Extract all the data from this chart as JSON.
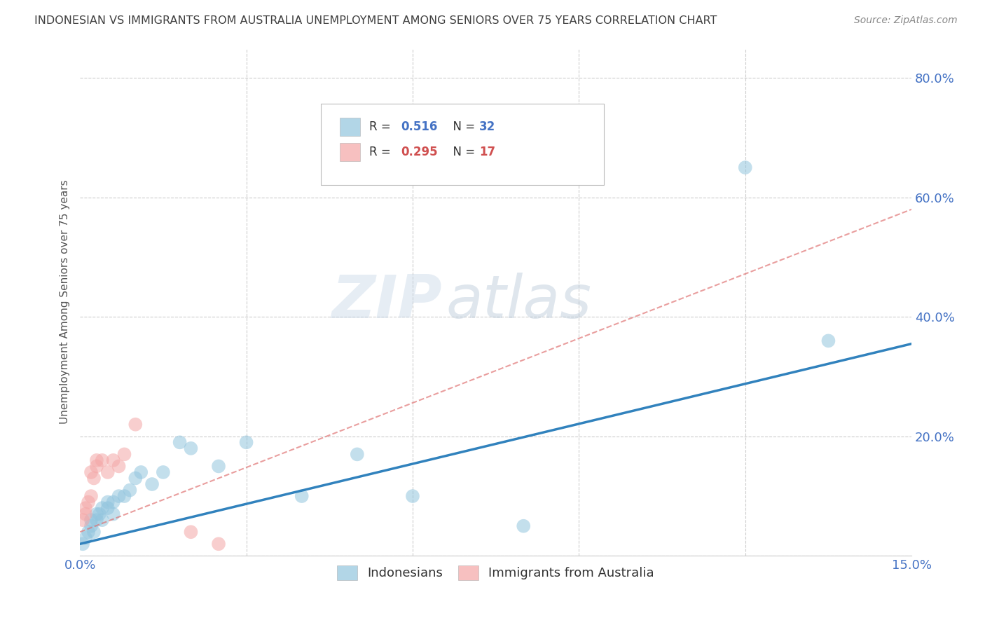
{
  "title": "INDONESIAN VS IMMIGRANTS FROM AUSTRALIA UNEMPLOYMENT AMONG SENIORS OVER 75 YEARS CORRELATION CHART",
  "source": "Source: ZipAtlas.com",
  "ylabel": "Unemployment Among Seniors over 75 years",
  "xlim": [
    0.0,
    0.15
  ],
  "ylim": [
    0.0,
    0.85
  ],
  "indonesian_r": "0.516",
  "indonesian_n": "32",
  "australian_r": "0.295",
  "australian_n": "17",
  "blue_color": "#92c5de",
  "pink_color": "#f4a6a6",
  "blue_line_color": "#3182bd",
  "pink_line_color": "#de6b6b",
  "indonesian_x": [
    0.0005,
    0.001,
    0.0015,
    0.002,
    0.002,
    0.0025,
    0.003,
    0.003,
    0.0035,
    0.004,
    0.004,
    0.005,
    0.005,
    0.006,
    0.006,
    0.007,
    0.008,
    0.009,
    0.01,
    0.011,
    0.013,
    0.015,
    0.018,
    0.02,
    0.025,
    0.03,
    0.04,
    0.05,
    0.06,
    0.08,
    0.12,
    0.135
  ],
  "indonesian_y": [
    0.02,
    0.03,
    0.04,
    0.05,
    0.06,
    0.04,
    0.06,
    0.07,
    0.07,
    0.06,
    0.08,
    0.08,
    0.09,
    0.07,
    0.09,
    0.1,
    0.1,
    0.11,
    0.13,
    0.14,
    0.12,
    0.14,
    0.19,
    0.18,
    0.15,
    0.19,
    0.1,
    0.17,
    0.1,
    0.05,
    0.65,
    0.36
  ],
  "australian_x": [
    0.0005,
    0.001,
    0.001,
    0.0015,
    0.002,
    0.002,
    0.0025,
    0.003,
    0.003,
    0.004,
    0.005,
    0.006,
    0.007,
    0.008,
    0.01,
    0.02,
    0.025
  ],
  "australian_y": [
    0.06,
    0.07,
    0.08,
    0.09,
    0.1,
    0.14,
    0.13,
    0.15,
    0.16,
    0.16,
    0.14,
    0.16,
    0.15,
    0.17,
    0.22,
    0.04,
    0.02
  ],
  "watermark_zip": "ZIP",
  "watermark_atlas": "atlas",
  "background_color": "#ffffff",
  "grid_color": "#cccccc",
  "label_color": "#4472c4",
  "title_color": "#404040"
}
